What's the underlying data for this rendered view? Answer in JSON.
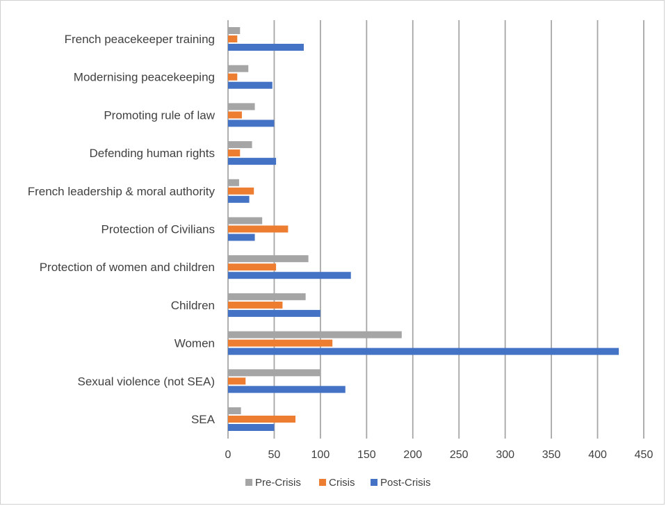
{
  "chart_data": {
    "type": "bar",
    "orientation": "horizontal",
    "categories": [
      "French peacekeeper training",
      "Modernising peacekeeping",
      "Promoting rule of law",
      "Defending human rights",
      "French leadership & moral authority",
      "Protection of Civilians",
      "Protection of women and children",
      "Children",
      "Women",
      "Sexual violence (not SEA)",
      "SEA"
    ],
    "series": [
      {
        "name": "Pre-Crisis",
        "color": "#a5a5a5",
        "values": [
          13,
          22,
          29,
          26,
          12,
          37,
          87,
          84,
          188,
          100,
          14
        ]
      },
      {
        "name": "Crisis",
        "color": "#ed7d31",
        "values": [
          10,
          10,
          15,
          13,
          28,
          65,
          52,
          59,
          113,
          19,
          73
        ]
      },
      {
        "name": "Post-Crisis",
        "color": "#4472c4",
        "values": [
          82,
          48,
          50,
          52,
          23,
          29,
          133,
          100,
          423,
          127,
          50
        ]
      }
    ],
    "xlim": [
      0,
      450
    ],
    "xticks": [
      0,
      50,
      100,
      150,
      200,
      250,
      300,
      350,
      400,
      450
    ],
    "grid": "vertical",
    "grid_color": "#a6a6a6",
    "legend_position": "bottom",
    "title": "",
    "xlabel": "",
    "ylabel": ""
  }
}
